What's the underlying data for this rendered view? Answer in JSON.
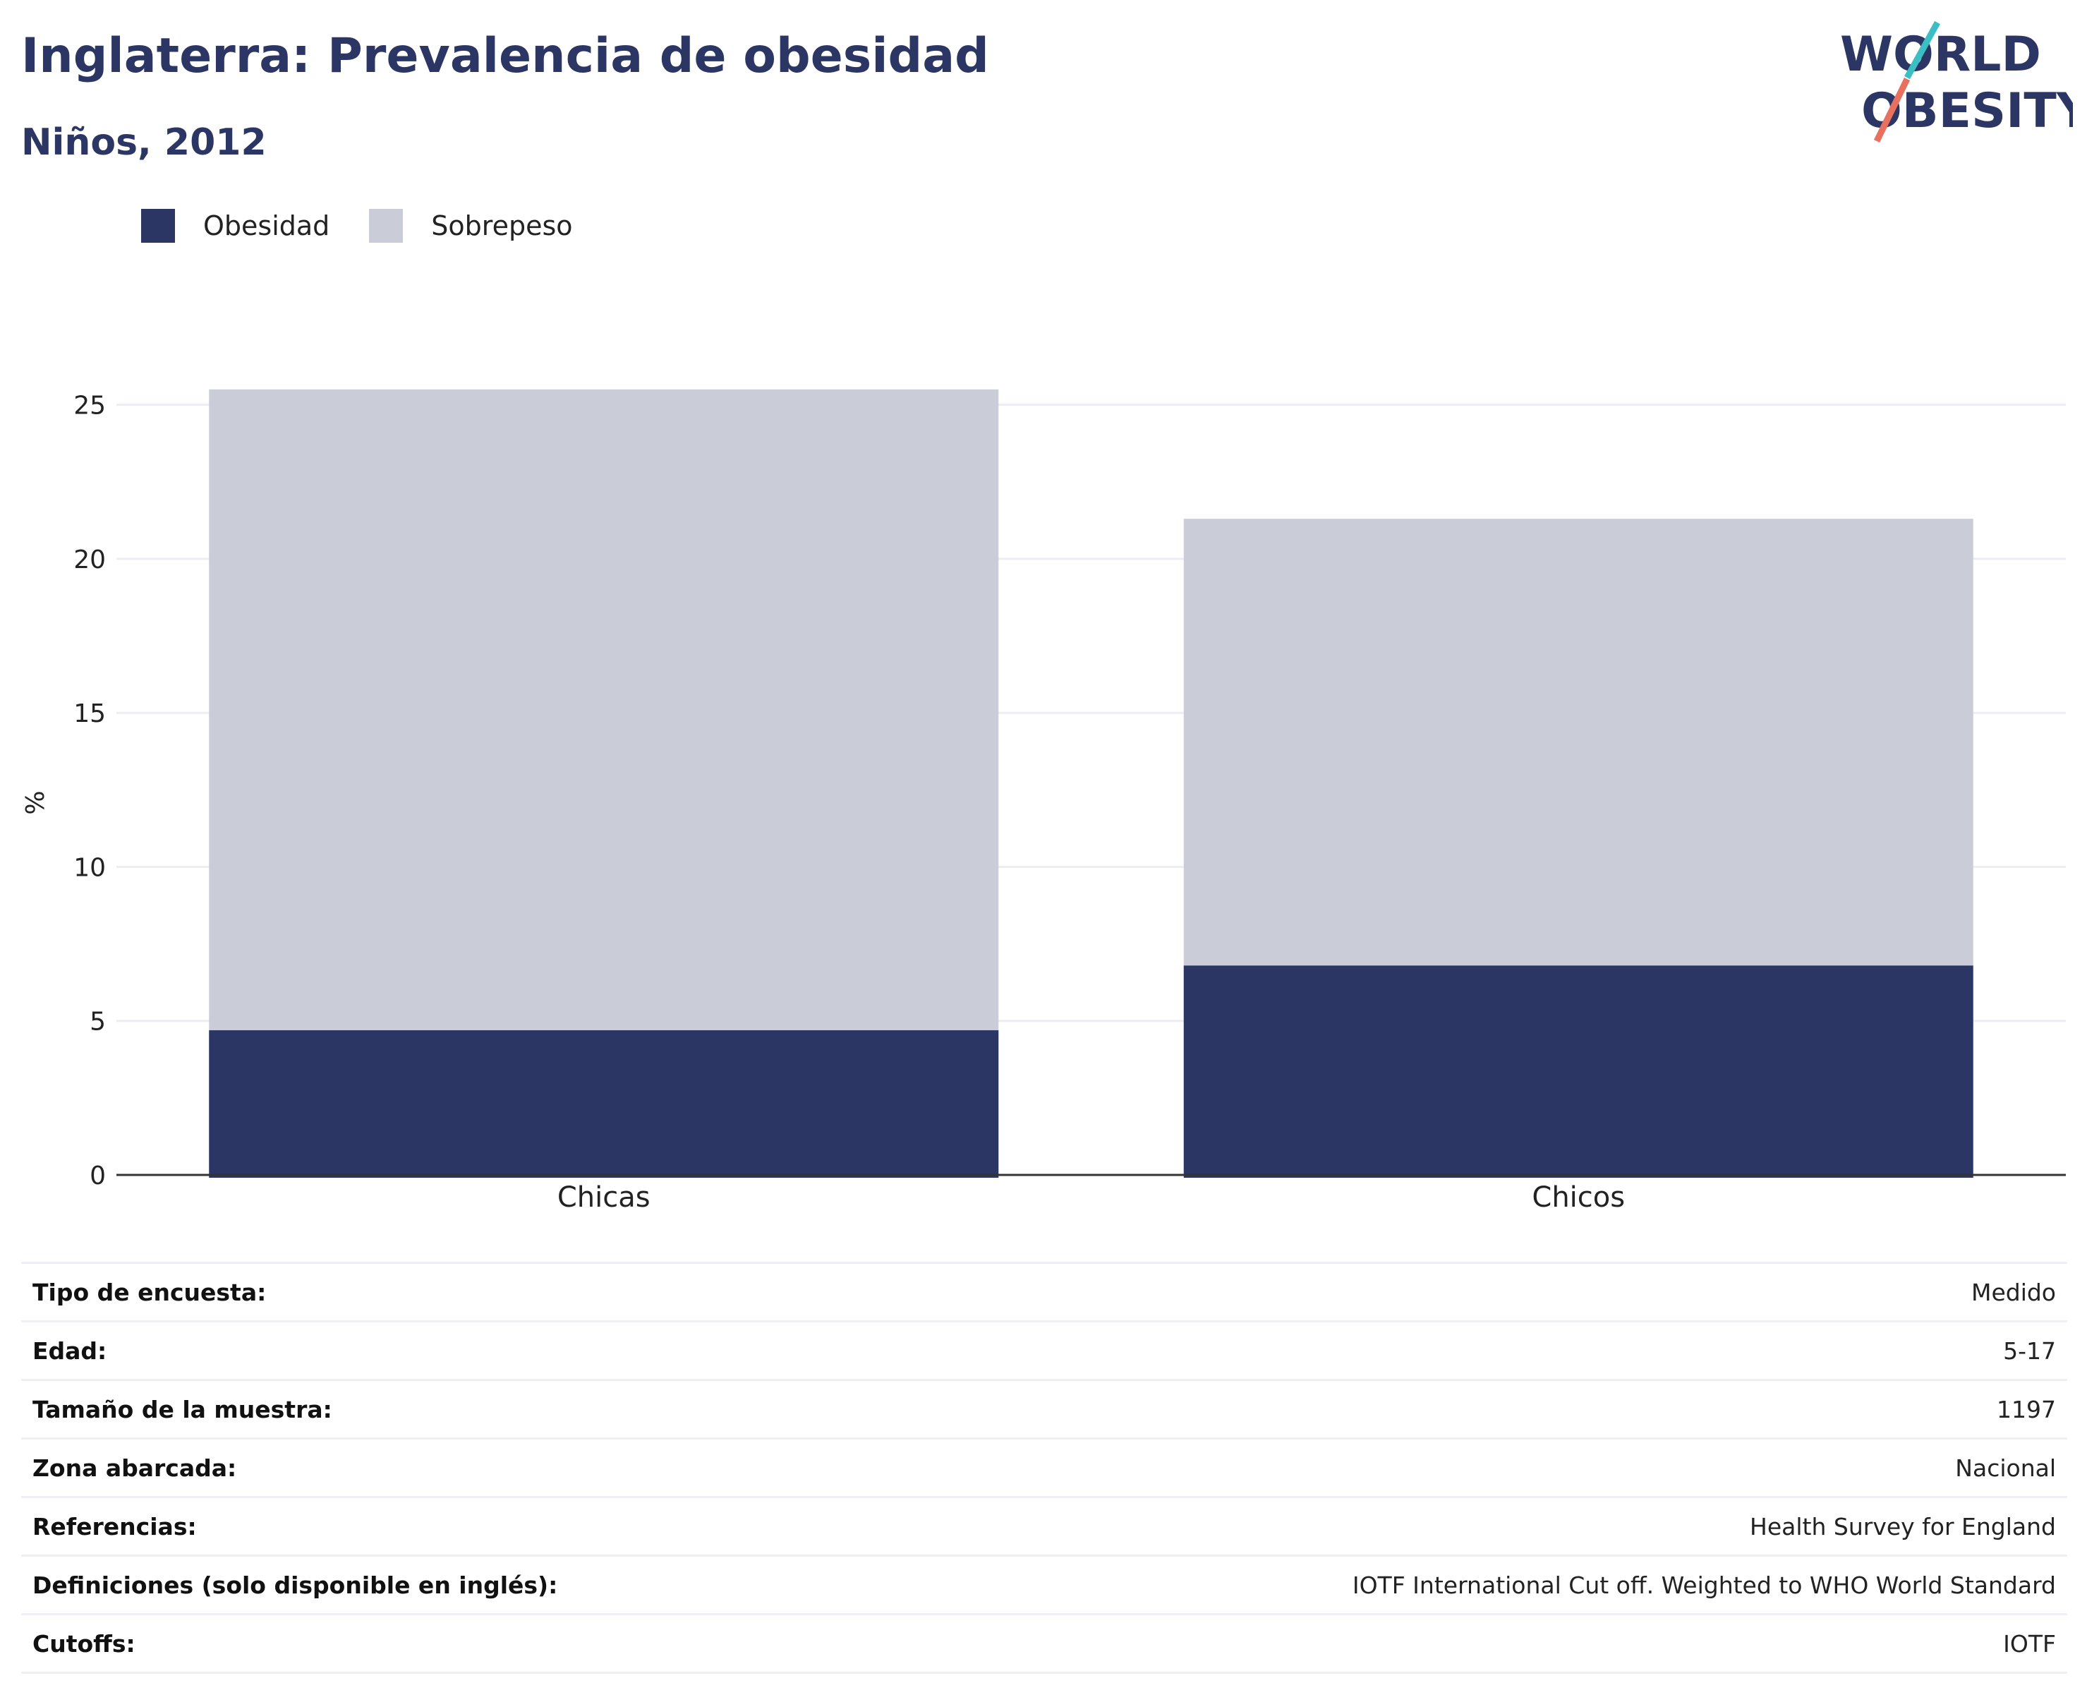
{
  "header": {
    "title": "Inglaterra: Prevalencia de obesidad",
    "subtitle": "Niños, 2012",
    "logo_line1": "WORLD",
    "logo_line2": "OBESITY"
  },
  "colors": {
    "obesity": "#2b3664",
    "overweight": "#cacdd8",
    "accent_teal": "#3cbfc4",
    "accent_coral": "#e8705f"
  },
  "chart_data": {
    "type": "bar",
    "stacked": true,
    "categories": [
      "Chicas",
      "Chicos"
    ],
    "series": [
      {
        "name": "Obesidad",
        "values": [
          4.7,
          6.8
        ]
      },
      {
        "name": "Sobrepeso",
        "values": [
          20.8,
          14.5
        ]
      }
    ],
    "ylabel": "%",
    "ylim": [
      0,
      26
    ],
    "yticks": [
      0,
      5,
      10,
      15,
      20,
      25
    ],
    "grid": true,
    "legend_position": "top-left"
  },
  "info": [
    {
      "label": "Tipo de encuesta:",
      "value": "Medido"
    },
    {
      "label": "Edad:",
      "value": "5-17"
    },
    {
      "label": "Tamaño de la muestra:",
      "value": "1197"
    },
    {
      "label": "Zona abarcada:",
      "value": "Nacional"
    },
    {
      "label": "Referencias:",
      "value": "Health Survey for England"
    },
    {
      "label": "Definiciones (solo disponible en inglés):",
      "value": "IOTF International Cut off. Weighted to WHO World Standard"
    },
    {
      "label": "Cutoffs:",
      "value": "IOTF"
    }
  ]
}
